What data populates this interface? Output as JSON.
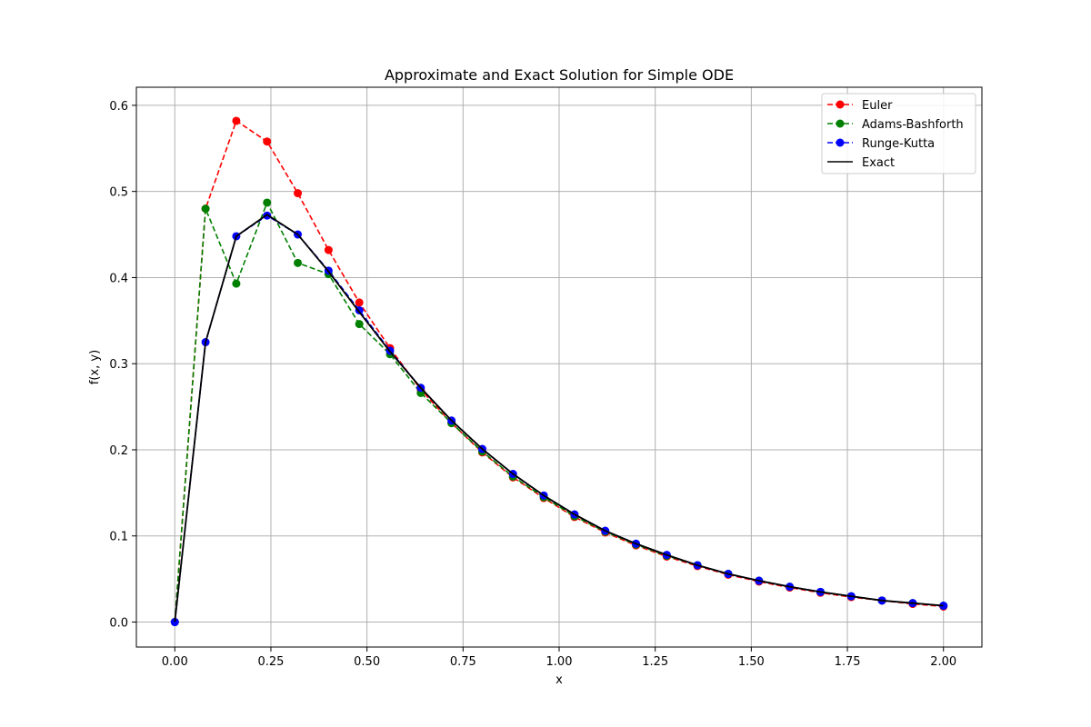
{
  "chart_data": {
    "type": "line",
    "title": "Approximate and Exact Solution for Simple ODE",
    "xlabel": "x",
    "ylabel": "f(x, y)",
    "xlim": [
      -0.1,
      2.1
    ],
    "ylim": [
      -0.029,
      0.621
    ],
    "xticks": [
      "0.00",
      "0.25",
      "0.50",
      "0.75",
      "1.00",
      "1.25",
      "1.50",
      "1.75",
      "2.00"
    ],
    "yticks": [
      "0.0",
      "0.1",
      "0.2",
      "0.3",
      "0.4",
      "0.5",
      "0.6"
    ],
    "grid": true,
    "legend_position": "top-right",
    "x": [
      0.0,
      0.08,
      0.16,
      0.24,
      0.32,
      0.4,
      0.48,
      0.56,
      0.64,
      0.72,
      0.8,
      0.88,
      0.96,
      1.04,
      1.12,
      1.2,
      1.28,
      1.36,
      1.44,
      1.52,
      1.6,
      1.68,
      1.76,
      1.84,
      1.92,
      2.0
    ],
    "series": [
      {
        "name": "Euler",
        "color": "#ff0000",
        "style": "dashed-markers",
        "values": [
          0.0,
          0.48,
          0.582,
          0.558,
          0.498,
          0.432,
          0.371,
          0.318,
          0.27,
          0.231,
          0.197,
          0.168,
          0.144,
          0.122,
          0.104,
          0.089,
          0.076,
          0.065,
          0.055,
          0.047,
          0.04,
          0.034,
          0.029,
          0.025,
          0.021,
          0.018
        ]
      },
      {
        "name": "Adams-Bashforth",
        "color": "#008000",
        "style": "dashed-markers",
        "values": [
          0.0,
          0.48,
          0.393,
          0.487,
          0.417,
          0.404,
          0.346,
          0.311,
          0.266,
          0.231,
          0.198,
          0.169,
          0.145,
          0.123,
          0.105,
          0.09,
          0.077,
          0.066,
          0.056,
          0.048,
          0.041,
          0.035,
          0.03,
          0.025,
          0.022,
          0.019
        ]
      },
      {
        "name": "Runge-Kutta",
        "color": "#0000ff",
        "style": "dashed-markers",
        "values": [
          0.0,
          0.325,
          0.448,
          0.472,
          0.45,
          0.408,
          0.362,
          0.315,
          0.272,
          0.234,
          0.201,
          0.172,
          0.147,
          0.125,
          0.106,
          0.091,
          0.078,
          0.066,
          0.056,
          0.048,
          0.041,
          0.035,
          0.03,
          0.025,
          0.022,
          0.019
        ]
      },
      {
        "name": "Exact",
        "color": "#000000",
        "style": "solid",
        "values": [
          0.0,
          0.325,
          0.448,
          0.473,
          0.45,
          0.407,
          0.36,
          0.314,
          0.272,
          0.234,
          0.201,
          0.172,
          0.147,
          0.125,
          0.106,
          0.091,
          0.078,
          0.066,
          0.056,
          0.048,
          0.041,
          0.035,
          0.03,
          0.025,
          0.022,
          0.019
        ]
      }
    ]
  }
}
